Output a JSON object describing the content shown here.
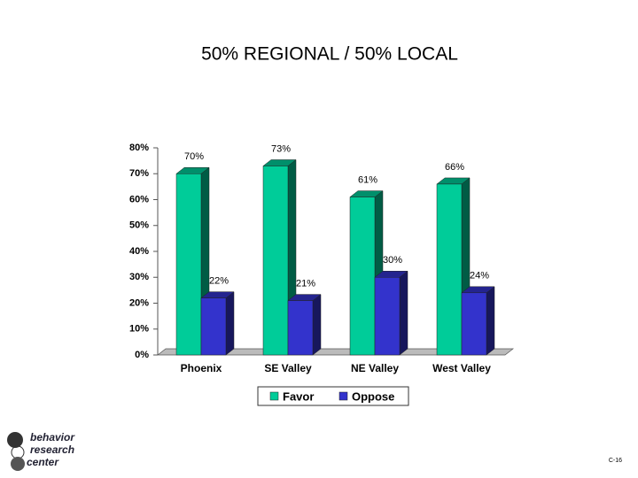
{
  "chart_data": {
    "type": "bar3d",
    "title": "50% REGIONAL / 50% LOCAL",
    "categories": [
      "Phoenix",
      "SE Valley",
      "NE Valley",
      "West Valley"
    ],
    "series": [
      {
        "name": "Favor",
        "color": "#00cc99",
        "values": [
          70,
          73,
          61,
          66
        ],
        "value_labels": [
          "70%",
          "73%",
          "61%",
          "66%"
        ]
      },
      {
        "name": "Oppose",
        "color": "#3333cc",
        "values": [
          22,
          21,
          30,
          24
        ],
        "value_labels": [
          "22%",
          "21%",
          "30%",
          "24%"
        ]
      }
    ],
    "ylim": [
      0,
      80
    ],
    "yticks": [
      {
        "value": 0,
        "label": "0%"
      },
      {
        "value": 10,
        "label": "10%"
      },
      {
        "value": 20,
        "label": "20%"
      },
      {
        "value": 30,
        "label": "30%"
      },
      {
        "value": 40,
        "label": "40%"
      },
      {
        "value": 50,
        "label": "50%"
      },
      {
        "value": 60,
        "label": "60%"
      },
      {
        "value": 70,
        "label": "70%"
      },
      {
        "value": 80,
        "label": "80%"
      }
    ],
    "legend": "bottom"
  },
  "logo": [
    "behavior",
    "research",
    "center"
  ],
  "page_number": "C-16"
}
